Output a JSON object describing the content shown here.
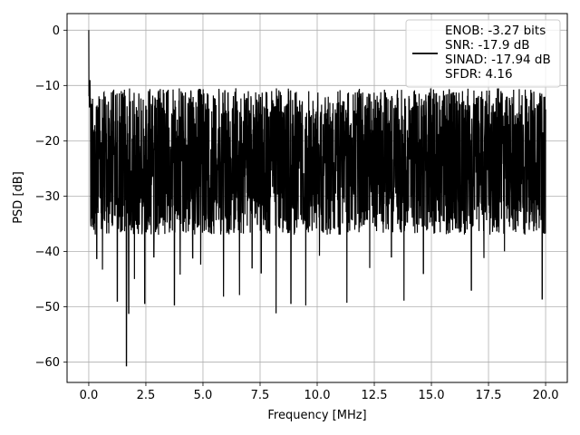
{
  "chart_data": {
    "type": "line",
    "title": "",
    "xlabel": "Frequency [MHz]",
    "ylabel": "PSD [dB]",
    "xlim": [
      -0.95,
      20.95
    ],
    "ylim": [
      -63.7,
      3.0
    ],
    "xticks": [
      0.0,
      2.5,
      5.0,
      7.5,
      10.0,
      12.5,
      15.0,
      17.5,
      20.0
    ],
    "xtick_labels": [
      "0.0",
      "2.5",
      "5.0",
      "7.5",
      "10.0",
      "12.5",
      "15.0",
      "17.5",
      "20.0"
    ],
    "yticks": [
      0,
      -10,
      -20,
      -30,
      -40,
      -50,
      -60
    ],
    "ytick_labels": [
      "0",
      "−10",
      "−20",
      "−30",
      "−40",
      "−50",
      "−60"
    ],
    "grid": true,
    "legend_placement": "top-right",
    "series": [
      {
        "color": "#000000",
        "legend_lines": [
          "ENOB: -3.27 bits",
          "SNR: -17.9 dB",
          "SINAD: -17.94 dB",
          "SFDR: 4.16"
        ],
        "x_range": [
          0,
          20
        ],
        "peak": {
          "x": 0.0,
          "y": 0.0
        },
        "noise_floor": {
          "mean": -22.5,
          "upper_envelope": -10.5,
          "typical_lower": -37
        },
        "deep_nulls": [
          {
            "x": 0.35,
            "y": -41.3
          },
          {
            "x": 0.6,
            "y": -43.3
          },
          {
            "x": 1.25,
            "y": -49.0
          },
          {
            "x": 1.65,
            "y": -60.7
          },
          {
            "x": 1.75,
            "y": -51.2
          },
          {
            "x": 2.0,
            "y": -45.0
          },
          {
            "x": 2.45,
            "y": -49.4
          },
          {
            "x": 2.85,
            "y": -41.0
          },
          {
            "x": 3.75,
            "y": -49.7
          },
          {
            "x": 4.0,
            "y": -44.2
          },
          {
            "x": 4.55,
            "y": -41.2
          },
          {
            "x": 4.9,
            "y": -42.4
          },
          {
            "x": 5.9,
            "y": -48.2
          },
          {
            "x": 6.6,
            "y": -47.9
          },
          {
            "x": 7.15,
            "y": -43.0
          },
          {
            "x": 7.55,
            "y": -43.9
          },
          {
            "x": 8.2,
            "y": -51.2
          },
          {
            "x": 8.85,
            "y": -49.4
          },
          {
            "x": 9.5,
            "y": -49.8
          },
          {
            "x": 10.1,
            "y": -40.8
          },
          {
            "x": 11.3,
            "y": -49.3
          },
          {
            "x": 12.3,
            "y": -43.0
          },
          {
            "x": 13.25,
            "y": -41.0
          },
          {
            "x": 13.8,
            "y": -48.9
          },
          {
            "x": 14.65,
            "y": -44.0
          },
          {
            "x": 16.75,
            "y": -47.0
          },
          {
            "x": 17.3,
            "y": -41.2
          },
          {
            "x": 18.2,
            "y": -40.0
          },
          {
            "x": 19.85,
            "y": -48.6
          }
        ]
      }
    ]
  }
}
